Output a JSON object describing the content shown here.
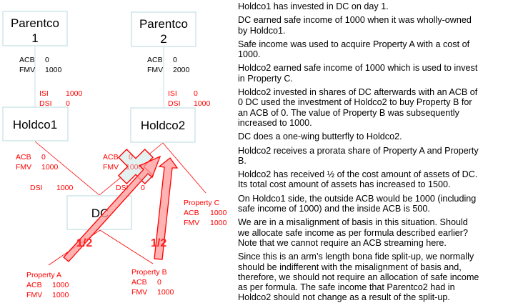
{
  "diagram": {
    "entities": {
      "parentco1": {
        "line1": "Parentco",
        "line2": "1"
      },
      "parentco2": {
        "line1": "Parentco",
        "line2": "2"
      },
      "holdco1": "Holdco1",
      "holdco2": "Holdco2",
      "dc": "DC"
    },
    "parentco1_shares": {
      "acb_label": "ACB",
      "acb": "0",
      "fmv_label": "FMV",
      "fmv": "1000"
    },
    "parentco2_shares": {
      "acb_label": "ACB",
      "acb": "0",
      "fmv_label": "FMV",
      "fmv": "2000"
    },
    "holdco1_income": {
      "isi_label": "ISI",
      "isi": "1000",
      "dsi_label": "DSI",
      "dsi": "0"
    },
    "holdco2_income": {
      "isi_label": "ISI",
      "isi": "0",
      "dsi_label": "DSI",
      "dsi": "1000"
    },
    "holdco1_dc_shares": {
      "acb_label": "ACB",
      "acb": "0",
      "fmv_label": "FMV",
      "fmv": "1000",
      "dsi_label": "DSI",
      "dsi": "1000"
    },
    "holdco2_dc_shares": {
      "acb_label": "ACB",
      "acb": "0",
      "fmv_label": "FMV",
      "fmv": "1000",
      "dsi_label": "DSI",
      "dsi": "0"
    },
    "property_a": {
      "name": "Property A",
      "acb_label": "ACB",
      "acb": "1000",
      "fmv_label": "FMV",
      "fmv": "1000"
    },
    "property_b": {
      "name": "Property B",
      "acb_label": "ACB",
      "acb": "0",
      "fmv_label": "FMV",
      "fmv": "1000"
    },
    "property_c": {
      "name": "Property C",
      "acb_label": "ACB",
      "acb": "1000",
      "fmv_label": "FMV",
      "fmv": "1000"
    },
    "transfer_a_fraction": "1/2",
    "transfer_b_fraction": "1/2",
    "colors": {
      "box_border": "#cfe6e8",
      "annotation": "#ff0000",
      "arrow_fill": "#ffb0b0",
      "cross_fill": "#e3f1f1"
    }
  },
  "notes": [
    {
      "lines": [
        "Holdco1 has invested in DC on day 1."
      ]
    },
    {
      "lines": [
        "DC earned safe income of 1000 when it was wholly-owned",
        "by Holdco1."
      ]
    },
    {
      "lines": [
        "Safe income was used to acquire Property A with a cost of",
        "1000."
      ]
    },
    {
      "lines": [
        "Holdco2 earned safe income of 1000 which is used to invest",
        "in Property C."
      ]
    },
    {
      "lines": [
        "Holdco2 invested in shares of DC afterwards with an ACB of",
        "0 DC used the investment of Holdco2 to buy Property B for",
        "an ACB of 0.  The value of Property B was subsequently",
        "increased to 1000."
      ]
    },
    {
      "lines": [
        "DC does a one-wing butterfly to Holdco2."
      ]
    },
    {
      "lines": [
        "Holdco2 receives a prorata share of Property A and Property",
        "B."
      ]
    },
    {
      "lines": [
        "Holdco2 has received ½ of the cost amount of assets of DC.",
        "Its total cost amount of assets has increased to 1500."
      ]
    },
    {
      "lines": [
        "On Holdco1 side, the outside ACB would be 1000 (including",
        "safe income of 1000) and the inside ACB is 500."
      ]
    },
    {
      "lines": [
        "We are in a misalignment of basis in this situation.  Should",
        "we allocate safe income as per formula described earlier?",
        "Note that we cannot require an ACB streaming here."
      ]
    },
    {
      "lines": [
        "Since this is an arm’s length bona fide split-up, we normally",
        "should be indifferent with the misalignment of basis and,",
        "therefore, we should not require an allocation of safe income",
        "as per formula.  The safe income that Parentco2 had in",
        "Holdco2 should not change as a result of the split-up."
      ]
    }
  ]
}
